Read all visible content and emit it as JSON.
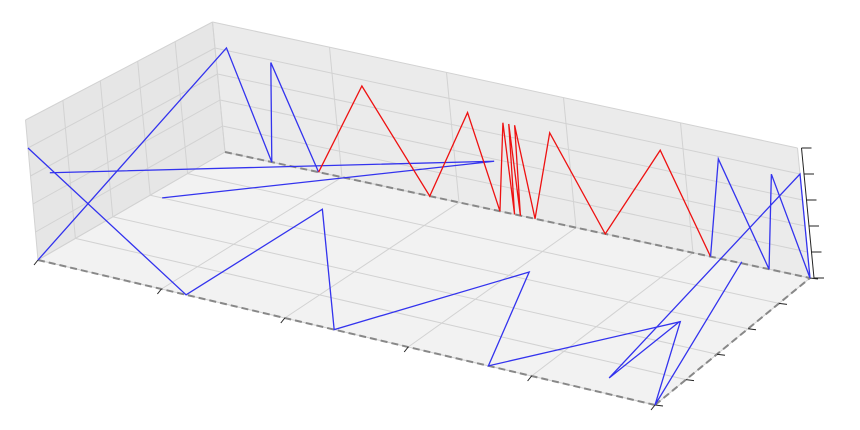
{
  "chart_data": {
    "type": "line3d",
    "xlim": [
      0,
      1
    ],
    "ylim": [
      0,
      1
    ],
    "zlim": [
      0,
      1
    ],
    "xticks": [
      0,
      0.2,
      0.4,
      0.6,
      0.8,
      1
    ],
    "yticks": [
      0,
      0.2,
      0.4,
      0.6,
      0.8,
      1
    ],
    "zticks": [
      0,
      0.2,
      0.4,
      0.6,
      0.8,
      1
    ],
    "grid": true,
    "series": [
      {
        "color": "#3333ee",
        "x": [
          0,
          0.24,
          0.24,
          0.48,
          0.62,
          0.73,
          0.9,
          1,
          1
        ],
        "y": [
          0,
          0,
          0.76,
          0,
          0.65,
          0,
          0.55,
          0,
          0.6
        ],
        "z": [
          0.8,
          0,
          0,
          0,
          0,
          0,
          0,
          0,
          0.5
        ]
      },
      {
        "color": "#3333ee",
        "x": [
          0,
          0.02,
          0.08,
          0.095,
          0.16
        ],
        "y": [
          0,
          1,
          1,
          1,
          1
        ],
        "z": [
          0,
          0.82,
          0,
          0.78,
          0
        ]
      },
      {
        "color": "#3333ee",
        "x": [
          0,
          0.5,
          0.02
        ],
        "y": [
          0.1,
          0.9,
          0.6
        ],
        "z": [
          0.55,
          0.5,
          0
        ]
      },
      {
        "color": "#ee1111",
        "x": [
          0.16,
          0.25,
          0.35,
          0.43,
          0.47,
          0.49,
          0.495,
          0.5,
          0.505,
          0.51,
          0.53,
          0.57,
          0.65,
          0.76,
          0.83
        ],
        "y": [
          1,
          1,
          1,
          1,
          1,
          1,
          1,
          1,
          1,
          1,
          1,
          1,
          1,
          1,
          1
        ],
        "z": [
          0,
          0.75,
          0,
          0.72,
          0,
          0.7,
          0,
          0.7,
          0,
          0.7,
          0,
          0.7,
          0,
          0.75,
          0
        ]
      },
      {
        "color": "#3333ee",
        "x": [
          0.83,
          0.86,
          0.93,
          0.95,
          1,
          1,
          0.9,
          0.97
        ],
        "y": [
          1,
          1,
          1,
          1,
          1,
          1,
          0.1,
          0.3
        ],
        "z": [
          0,
          0.78,
          0,
          0.75,
          0,
          0.8,
          0,
          0.3
        ]
      }
    ]
  }
}
